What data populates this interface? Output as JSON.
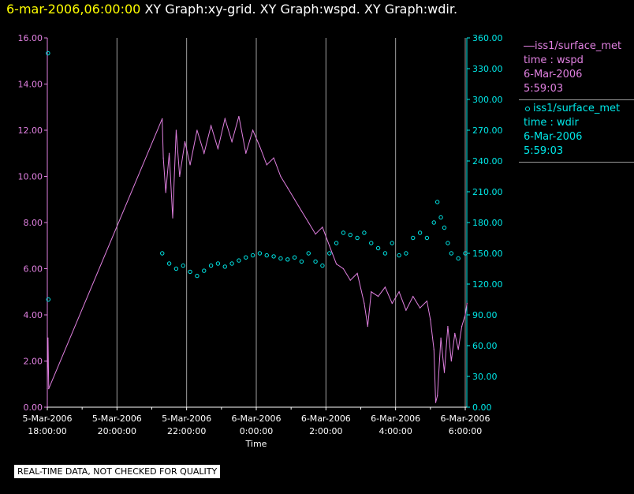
{
  "header": {
    "timestamp": "6-mar-2006,06:00:00",
    "graphs": [
      " XY Graph:xy-grid.",
      " XY Graph:wspd.",
      " XY Graph:wdir."
    ]
  },
  "notice": "REAL-TIME DATA, NOT CHECKED FOR QUALITY",
  "legend": [
    {
      "series": "iss1/surface_met",
      "var": "time : wspd",
      "date": "6-Mar-2006",
      "time": "5:59:03",
      "color": "#e080e0",
      "style": "line"
    },
    {
      "series": "iss1/surface_met",
      "var": "time : wdir",
      "date": "6-Mar-2006",
      "time": "5:59:03",
      "color": "#00e8e8",
      "style": "circle"
    }
  ],
  "chart_data": {
    "type": "scatter",
    "xlabel": "Time",
    "x_ticks": [
      {
        "date": "5-Mar-2006",
        "time": "18:00:00",
        "h": 0
      },
      {
        "date": "5-Mar-2006",
        "time": "20:00:00",
        "h": 2
      },
      {
        "date": "5-Mar-2006",
        "time": "22:00:00",
        "h": 4
      },
      {
        "date": "6-Mar-2006",
        "time": "0:00:00",
        "h": 6
      },
      {
        "date": "6-Mar-2006",
        "time": "2:00:00",
        "h": 8
      },
      {
        "date": "6-Mar-2006",
        "time": "4:00:00",
        "h": 10
      },
      {
        "date": "6-Mar-2006",
        "time": "6:00:00",
        "h": 12
      }
    ],
    "xlim": [
      0,
      12
    ],
    "left_axis": {
      "ylim": [
        0,
        16
      ],
      "ticks": [
        "0.00",
        "2.00",
        "4.00",
        "6.00",
        "8.00",
        "10.00",
        "12.00",
        "14.00",
        "16.00"
      ],
      "color": "#e080e0"
    },
    "right_axis": {
      "ylim": [
        0,
        360
      ],
      "ticks": [
        "0.00",
        "30.00",
        "60.00",
        "90.00",
        "120.00",
        "150.00",
        "180.00",
        "210.00",
        "240.00",
        "270.00",
        "300.00",
        "330.00",
        "360.00"
      ],
      "color": "#00e8e8"
    },
    "grid": "vertical",
    "series": [
      {
        "name": "iss1/surface_met time : wspd",
        "axis": "left",
        "style": "line",
        "points": [
          [
            0.0,
            0.8
          ],
          [
            0.02,
            3.0
          ],
          [
            0.04,
            0.8
          ],
          [
            3.3,
            12.5
          ],
          [
            3.33,
            10.8
          ],
          [
            3.4,
            9.3
          ],
          [
            3.5,
            11.0
          ],
          [
            3.6,
            8.2
          ],
          [
            3.7,
            12.0
          ],
          [
            3.8,
            10.0
          ],
          [
            3.95,
            11.5
          ],
          [
            4.1,
            10.5
          ],
          [
            4.3,
            12.0
          ],
          [
            4.5,
            11.0
          ],
          [
            4.7,
            12.2
          ],
          [
            4.9,
            11.2
          ],
          [
            5.1,
            12.5
          ],
          [
            5.3,
            11.5
          ],
          [
            5.5,
            12.6
          ],
          [
            5.7,
            11.0
          ],
          [
            5.9,
            12.0
          ],
          [
            6.1,
            11.3
          ],
          [
            6.3,
            10.5
          ],
          [
            6.5,
            10.8
          ],
          [
            6.7,
            10.0
          ],
          [
            6.9,
            9.5
          ],
          [
            7.1,
            9.0
          ],
          [
            7.3,
            8.5
          ],
          [
            7.5,
            8.0
          ],
          [
            7.7,
            7.5
          ],
          [
            7.9,
            7.8
          ],
          [
            8.1,
            7.0
          ],
          [
            8.3,
            6.2
          ],
          [
            8.5,
            6.0
          ],
          [
            8.7,
            5.5
          ],
          [
            8.9,
            5.8
          ],
          [
            9.1,
            4.5
          ],
          [
            9.2,
            3.5
          ],
          [
            9.3,
            5.0
          ],
          [
            9.5,
            4.8
          ],
          [
            9.7,
            5.2
          ],
          [
            9.9,
            4.5
          ],
          [
            10.1,
            5.0
          ],
          [
            10.3,
            4.2
          ],
          [
            10.5,
            4.8
          ],
          [
            10.7,
            4.3
          ],
          [
            10.9,
            4.6
          ],
          [
            11.0,
            3.8
          ],
          [
            11.1,
            2.5
          ],
          [
            11.15,
            0.2
          ],
          [
            11.2,
            0.5
          ],
          [
            11.3,
            3.0
          ],
          [
            11.4,
            1.5
          ],
          [
            11.5,
            3.5
          ],
          [
            11.6,
            2.0
          ],
          [
            11.7,
            3.2
          ],
          [
            11.8,
            2.5
          ],
          [
            11.9,
            3.5
          ],
          [
            12.0,
            4.0
          ],
          [
            12.05,
            4.5
          ]
        ]
      },
      {
        "name": "iss1/surface_met time : wdir",
        "axis": "right",
        "style": "circle",
        "points": [
          [
            0.02,
            345
          ],
          [
            0.03,
            105
          ],
          [
            3.3,
            150
          ],
          [
            3.5,
            140
          ],
          [
            3.7,
            135
          ],
          [
            3.9,
            138
          ],
          [
            4.1,
            132
          ],
          [
            4.3,
            128
          ],
          [
            4.5,
            133
          ],
          [
            4.7,
            138
          ],
          [
            4.9,
            140
          ],
          [
            5.1,
            137
          ],
          [
            5.3,
            140
          ],
          [
            5.5,
            143
          ],
          [
            5.7,
            146
          ],
          [
            5.9,
            148
          ],
          [
            6.1,
            150
          ],
          [
            6.3,
            148
          ],
          [
            6.5,
            147
          ],
          [
            6.7,
            145
          ],
          [
            6.9,
            144
          ],
          [
            7.1,
            146
          ],
          [
            7.3,
            142
          ],
          [
            7.5,
            150
          ],
          [
            7.7,
            142
          ],
          [
            7.9,
            138
          ],
          [
            8.1,
            150
          ],
          [
            8.3,
            160
          ],
          [
            8.5,
            170
          ],
          [
            8.7,
            168
          ],
          [
            8.9,
            165
          ],
          [
            9.1,
            170
          ],
          [
            9.3,
            160
          ],
          [
            9.5,
            155
          ],
          [
            9.7,
            150
          ],
          [
            9.9,
            160
          ],
          [
            10.1,
            148
          ],
          [
            10.3,
            150
          ],
          [
            10.5,
            165
          ],
          [
            10.7,
            170
          ],
          [
            10.9,
            165
          ],
          [
            11.1,
            180
          ],
          [
            11.2,
            200
          ],
          [
            11.3,
            185
          ],
          [
            11.4,
            175
          ],
          [
            11.5,
            160
          ],
          [
            11.6,
            150
          ],
          [
            11.8,
            145
          ],
          [
            12.0,
            150
          ]
        ]
      }
    ]
  }
}
